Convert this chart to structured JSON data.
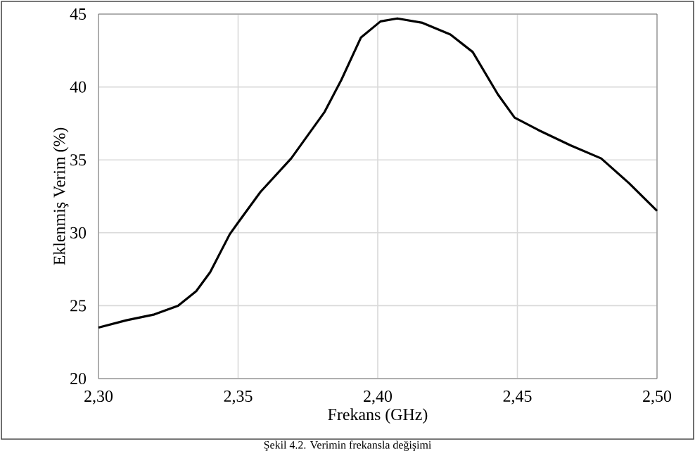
{
  "chart_data": {
    "type": "line",
    "xlabel": "Frekans (GHz)",
    "ylabel": "Eklenmiş Verim (%)",
    "annotations": [
      "Şekil 4.2. Verimin frekansla değişimi"
    ],
    "series": [
      {
        "color": "#000000",
        "x": [
          2.3,
          2.31,
          2.32,
          2.3285,
          2.335,
          2.34,
          2.347,
          2.35,
          2.358,
          2.369,
          2.381,
          2.387,
          2.394,
          2.401,
          2.407,
          2.416,
          2.426,
          2.434,
          2.443,
          2.449,
          2.458,
          2.469,
          2.48,
          2.49,
          2.5
        ],
        "values": [
          23.5,
          24.0,
          24.4,
          25.0,
          26.0,
          27.3,
          29.9,
          30.7,
          32.8,
          35.1,
          38.3,
          40.5,
          43.4,
          44.5,
          44.7,
          44.4,
          43.6,
          42.4,
          39.5,
          37.9,
          37.0,
          36.0,
          35.1,
          33.4,
          31.5
        ]
      }
    ],
    "xlim": [
      2.3,
      2.5
    ],
    "xticks": [
      {
        "value": 2.3,
        "label": "2,30"
      },
      {
        "value": 2.35,
        "label": "2,35"
      },
      {
        "value": 2.4,
        "label": "2,40"
      },
      {
        "value": 2.45,
        "label": "2,45"
      },
      {
        "value": 2.5,
        "label": "2,50"
      }
    ],
    "ylim": [
      20,
      45
    ],
    "yticks": [
      20,
      25,
      30,
      35,
      40,
      45
    ],
    "grid": true,
    "marker": "none",
    "line_style": "solid"
  }
}
